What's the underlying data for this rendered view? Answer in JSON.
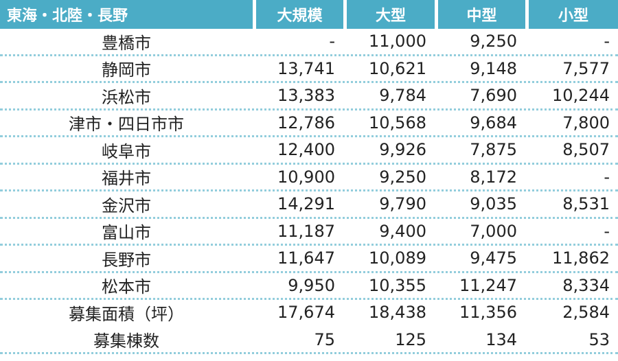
{
  "table": {
    "header": {
      "region": "東海・北陸・長野",
      "columns": [
        "大規模",
        "大型",
        "中型",
        "小型"
      ]
    },
    "rows": [
      {
        "city": "豊橋市",
        "values": [
          "-",
          "11,000",
          "9,250",
          "-"
        ]
      },
      {
        "city": "静岡市",
        "values": [
          "13,741",
          "10,621",
          "9,148",
          "7,577"
        ]
      },
      {
        "city": "浜松市",
        "values": [
          "13,383",
          "9,784",
          "7,690",
          "10,244"
        ]
      },
      {
        "city": "津市・四日市市",
        "values": [
          "12,786",
          "10,568",
          "9,684",
          "7,800"
        ]
      },
      {
        "city": "岐阜市",
        "values": [
          "12,400",
          "9,926",
          "7,875",
          "8,507"
        ]
      },
      {
        "city": "福井市",
        "values": [
          "10,900",
          "9,250",
          "8,172",
          "-"
        ]
      },
      {
        "city": "金沢市",
        "values": [
          "14,291",
          "9,790",
          "9,035",
          "8,531"
        ]
      },
      {
        "city": "富山市",
        "values": [
          "11,187",
          "9,400",
          "7,000",
          "-"
        ]
      },
      {
        "city": "長野市",
        "values": [
          "11,647",
          "10,089",
          "9,475",
          "11,862"
        ]
      },
      {
        "city": "松本市",
        "values": [
          "9,950",
          "10,355",
          "11,247",
          "8,334"
        ]
      }
    ],
    "summary": [
      {
        "label": "募集面積（坪）",
        "values": [
          "17,674",
          "18,438",
          "11,356",
          "2,584"
        ]
      },
      {
        "label": "募集棟数",
        "values": [
          "75",
          "125",
          "134",
          "53"
        ]
      }
    ]
  },
  "colors": {
    "header_bg": "#4bacc6",
    "header_text": "#ffffff",
    "separator": "#92cddc",
    "text": "#222222"
  }
}
